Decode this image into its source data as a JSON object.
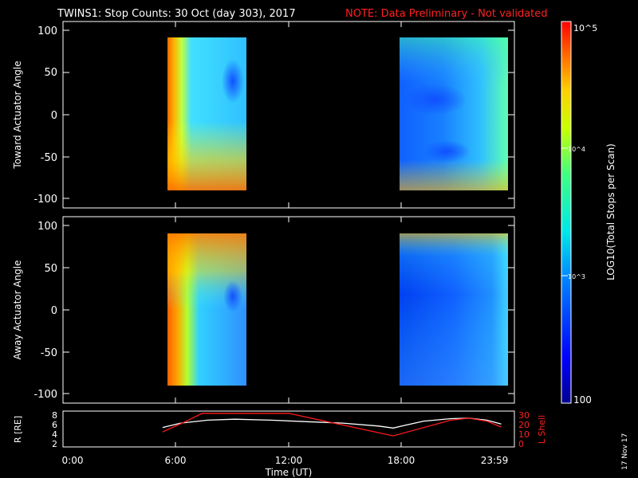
{
  "header": {
    "title": "TWINS1: Stop Counts: 30 Oct (day 303), 2017",
    "note": "NOTE: Data Preliminary - Not validated",
    "date_stamp": "17 Nov 17"
  },
  "colors": {
    "note": "#ff2020",
    "lshell": "#ff1a1a",
    "r": "#ffffff"
  },
  "chart_data": [
    {
      "type": "heatmap",
      "ylabel": "Toward Actuator Angle",
      "ylim": [
        -110,
        110
      ],
      "yticks": [
        "100",
        "50",
        "0",
        "-50",
        "-100"
      ],
      "blocks": [
        {
          "x_start": "05:40",
          "x_end": "09:50",
          "y_range": [
            -88,
            90
          ]
        },
        {
          "x_start": "17:50",
          "x_end": "23:45",
          "y_range": [
            -88,
            90
          ]
        }
      ]
    },
    {
      "type": "heatmap",
      "ylabel": "Away Actuator Angle",
      "ylim": [
        -110,
        110
      ],
      "yticks": [
        "100",
        "50",
        "0",
        "-50",
        "-100"
      ],
      "blocks": [
        {
          "x_start": "05:40",
          "x_end": "09:50",
          "y_range": [
            -88,
            90
          ]
        },
        {
          "x_start": "17:50",
          "x_end": "23:45",
          "y_range": [
            -88,
            90
          ]
        }
      ]
    },
    {
      "type": "line",
      "xlabel": "Time (UT)",
      "xticks": [
        "0:00",
        "6:00",
        "12:00",
        "18:00",
        "23:59"
      ],
      "ylabel_left": "R [RE]",
      "yticks_left": [
        "8",
        "6",
        "4",
        "2"
      ],
      "ylabel_right": "L Shell",
      "yticks_right": [
        "30",
        "20",
        "10",
        "0"
      ],
      "series": [
        {
          "name": "R [RE]",
          "x_hours": [
            5.0,
            6.0,
            7.5,
            9.0,
            11.0,
            13.0,
            15.0,
            17.0,
            17.8,
            18.5,
            19.5,
            21.0,
            22.0,
            23.0,
            23.8
          ],
          "values": [
            5.3,
            6.2,
            6.8,
            7.0,
            6.8,
            6.5,
            6.2,
            5.6,
            5.2,
            5.8,
            6.6,
            7.1,
            7.2,
            6.8,
            6.0
          ]
        },
        {
          "name": "L Shell",
          "x_hours": [
            5.0,
            6.2,
            7.2,
            12.0,
            17.8,
            21.0,
            22.0,
            23.0,
            23.8
          ],
          "values": [
            12,
            22,
            31,
            31,
            8,
            24,
            26,
            23,
            17
          ]
        }
      ]
    }
  ],
  "colorbar": {
    "label": "LOG10(Total Stops per Scan)",
    "ticks": [
      "10^5",
      "10^4",
      "10^3",
      "100"
    ],
    "min_label": "100"
  }
}
